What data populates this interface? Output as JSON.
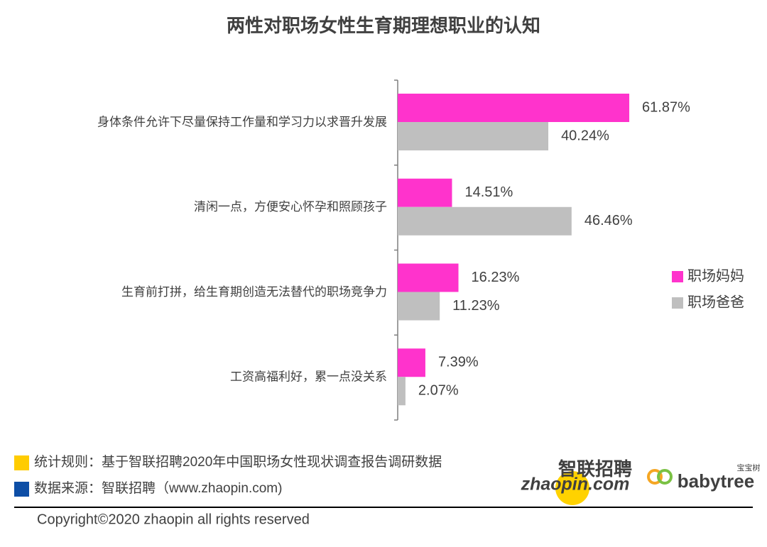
{
  "chart_data": {
    "type": "hbar",
    "title": "两性对职场女性生育期理想职业的认知",
    "categories": [
      "身体条件允许下尽量保持工作量和学习力以求晋升发展",
      "清闲一点，方便安心怀孕和照顾孩子",
      "生育前打拼，给生育期创造无法替代的职场竞争力",
      "工资高福利好，累一点没关系"
    ],
    "series": [
      {
        "name": "职场妈妈",
        "color": "#ff33cc",
        "values": [
          61.87,
          14.51,
          16.23,
          7.39
        ],
        "value_labels": [
          "61.87%",
          "14.51%",
          "16.23%",
          "7.39%"
        ]
      },
      {
        "name": "职场爸爸",
        "color": "#bfbfbf",
        "values": [
          40.24,
          46.46,
          11.23,
          2.07
        ],
        "value_labels": [
          "40.24%",
          "46.46%",
          "11.23%",
          "2.07%"
        ]
      }
    ],
    "legend": "right"
  },
  "footer": {
    "notes": [
      {
        "text": "统计规则：基于智联招聘2020年中国职场女性现状调查报告调研数据",
        "color": "#ffcc00"
      },
      {
        "text": "数据来源：智联招聘（www.zhaopin.com)",
        "color": "#0d4ea6"
      }
    ],
    "logo_zhaopin_cn": "智联招聘",
    "logo_zhaopin_en": "zhaopin.com",
    "logo_babytree": "babytree",
    "logo_babytree_cn": "宝宝树",
    "copyright": "Copyright©2020 zhaopin all rights reserved"
  }
}
